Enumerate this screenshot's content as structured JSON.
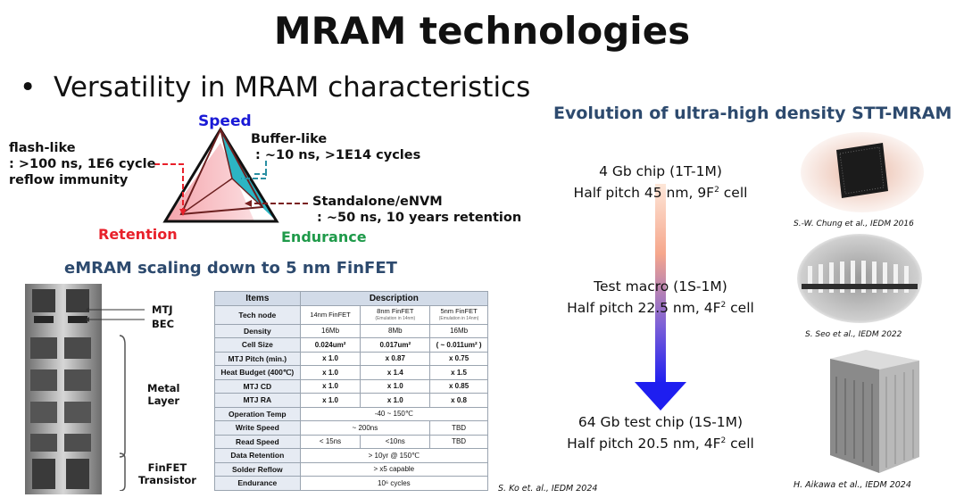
{
  "slide": {
    "title": "MRAM technologies",
    "bullet_marker": "•",
    "bullet": "Versatility in MRAM characteristics"
  },
  "triangle": {
    "speed": "Speed",
    "retention": "Retention",
    "endurance": "Endurance",
    "flash_lines": [
      "flash-like",
      ": >100 ns, 1E6 cycle",
      "reflow immunity"
    ],
    "buffer_lines": [
      "Buffer-like",
      " : ~10 ns, >1E14 cycles"
    ],
    "standalone_lines": [
      "Standalone/eNVM",
      " : ~50 ns, 10 years retention"
    ],
    "colors": {
      "speed": "#1a1ad6",
      "retention": "#e8202a",
      "endurance": "#1f9a4a",
      "buffer_fill": "#2cb5c3",
      "flash_fill": "#f4a0a6"
    }
  },
  "scaling": {
    "header": "eMRAM scaling down to 5 nm FinFET",
    "stack_labels": {
      "mtj": "MTJ",
      "bec": "BEC",
      "metal": [
        "Metal",
        "Layer"
      ],
      "finfet": [
        "FinFET",
        "Transistor"
      ]
    },
    "table": {
      "headers": [
        "Items",
        "Description"
      ],
      "tech_node_label": "Tech node",
      "nodes": [
        {
          "name": "14nm FinFET",
          "note": ""
        },
        {
          "name": "8nm FinFET",
          "note": "(Emulation in 14nm)"
        },
        {
          "name": "5nm FinFET",
          "note": "(Emulation in 14nm)"
        }
      ],
      "rows": [
        {
          "item": "Density",
          "v1": "16Mb",
          "v2": "8Mb",
          "v3": "16Mb"
        },
        {
          "item": "Cell Size",
          "v1": "0.024um²",
          "v2": "0.017um²",
          "v3": "( ~ 0.011um² )"
        },
        {
          "item": "MTJ Pitch (min.)",
          "v1": "x 1.0",
          "v2": "x 0.87",
          "v3": "x 0.75"
        },
        {
          "item": "Heat Budget (400℃)",
          "v1": "x 1.0",
          "v2": "x 1.4",
          "v3": "x 1.5"
        },
        {
          "item": "MTJ CD",
          "v1": "x 1.0",
          "v2": "x 1.0",
          "v3": "x 0.85"
        },
        {
          "item": "MTJ RA",
          "v1": "x 1.0",
          "v2": "x 1.0",
          "v3": "x 0.8"
        }
      ],
      "operation_temp": {
        "item": "Operation Temp",
        "value": "-40 ~ 150℃"
      },
      "write_speed": {
        "item": "Write Speed",
        "value": "~ 200ns",
        "v3": "TBD"
      },
      "read_speed": {
        "item": "Read Speed",
        "v1": "< 15ns",
        "v2": "<10ns",
        "v3": "TBD"
      },
      "data_retention": {
        "item": "Data Retention",
        "value": "> 10yr @ 150℃"
      },
      "solder_reflow": {
        "item": "Solder Reflow",
        "value": "> x5 capable"
      },
      "endurance": {
        "item": "Endurance",
        "value": "10⁶ cycles"
      }
    },
    "citation": "S. Ko et. al., IEDM 2024"
  },
  "evolution": {
    "header": "Evolution of ultra-high density STT-MRAM",
    "stages": [
      {
        "line1": "4 Gb chip (1T-1M)",
        "line2_prefix": "Half pitch 45 nm, 9F",
        "sup": "2",
        "line2_suffix": " cell"
      },
      {
        "line1": "Test macro (1S-1M)",
        "line2_prefix": "Half pitch 22.5 nm, 4F",
        "sup": "2",
        "line2_suffix": " cell"
      },
      {
        "line1": "64 Gb test chip (1S-1M)",
        "line2_prefix": "Half pitch 20.5 nm, 4F",
        "sup": "2",
        "line2_suffix": " cell"
      }
    ],
    "citations": [
      "S.-W. Chung et al., IEDM 2016",
      "S. Seo et al., IEDM 2022",
      "H. Aikawa et al., IEDM 2024"
    ],
    "arrow_colors": {
      "top": "#f6b59a",
      "bottom": "#1e1ef0"
    }
  }
}
